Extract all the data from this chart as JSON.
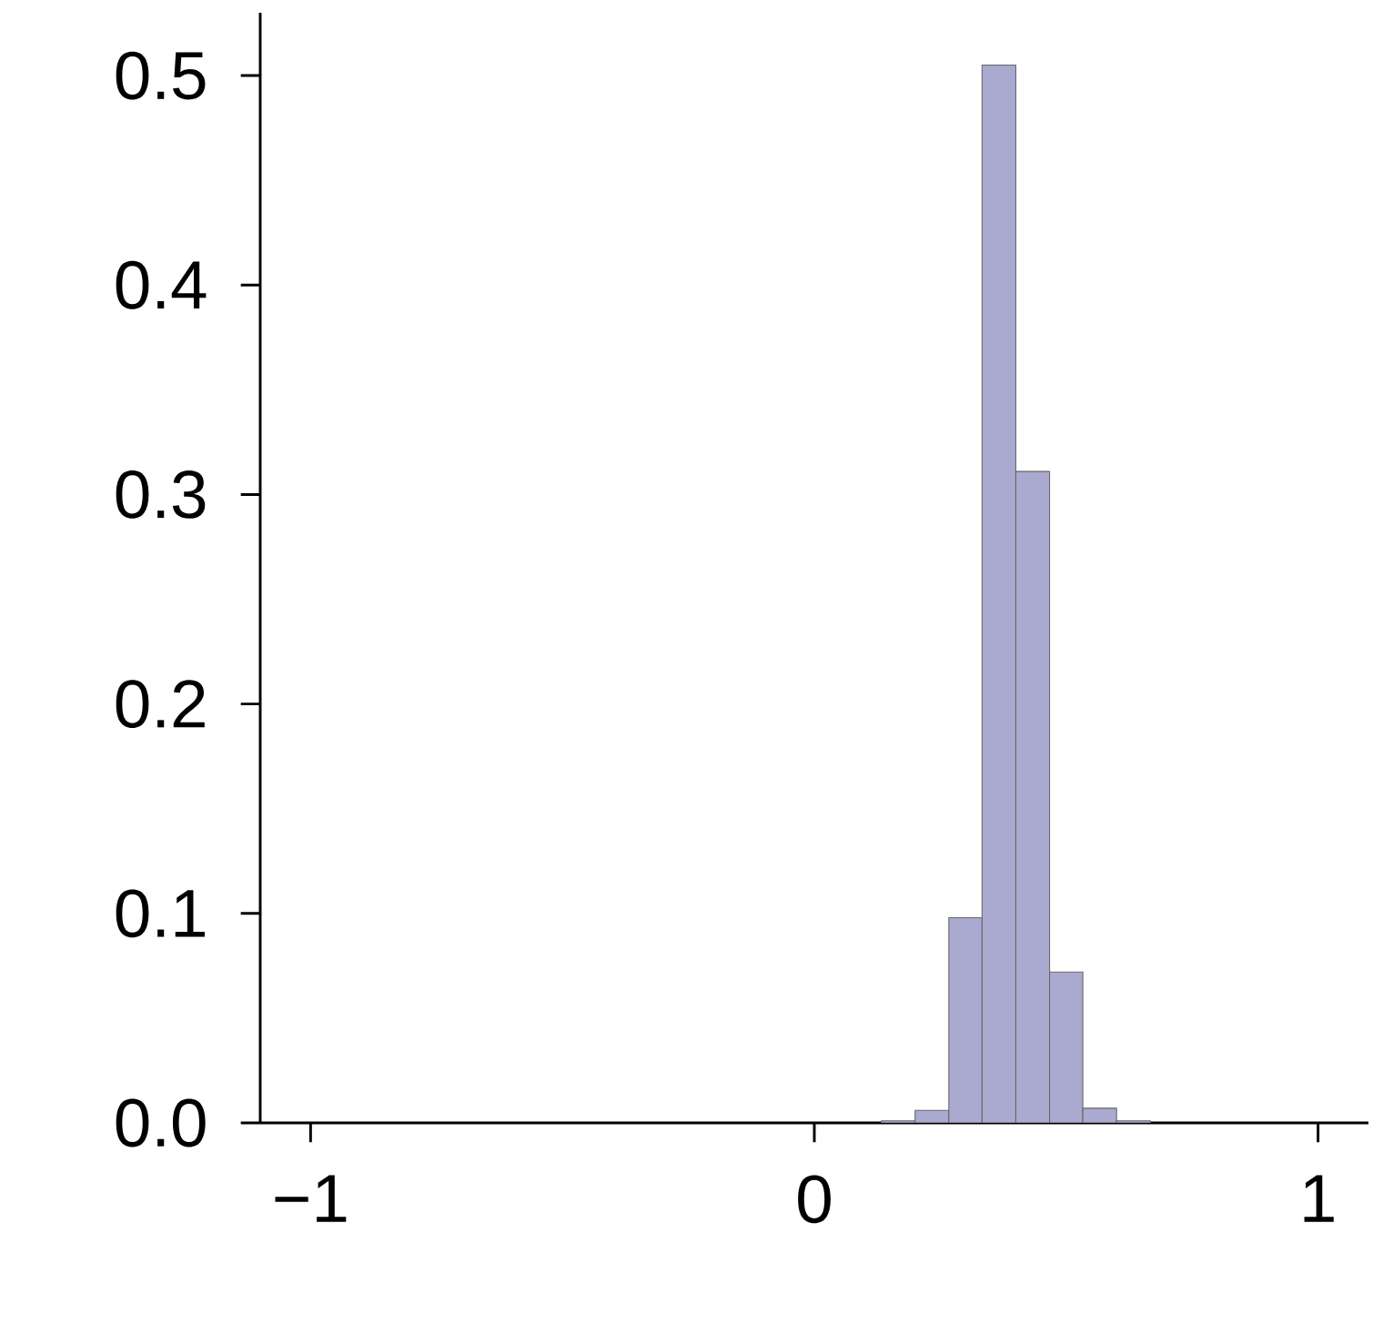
{
  "chart_data": {
    "type": "histogram",
    "bins": [
      0.133,
      0.2,
      0.267,
      0.333,
      0.4,
      0.467,
      0.533,
      0.6,
      0.667
    ],
    "values": [
      0.001,
      0.006,
      0.098,
      0.505,
      0.311,
      0.072,
      0.007,
      0.001
    ],
    "color": "#aaa9d0",
    "xlim": [
      -1.1,
      1.1
    ],
    "ylim": [
      0,
      0.53
    ],
    "xticks": [
      {
        "value": -1,
        "label": "−1"
      },
      0,
      1
    ],
    "yticks": [
      {
        "value": 0,
        "label": "0.0"
      },
      {
        "value": 0.1,
        "label": "0.1"
      },
      {
        "value": 0.2,
        "label": "0.2"
      },
      {
        "value": 0.3,
        "label": "0.3"
      },
      {
        "value": 0.4,
        "label": "0.4"
      },
      {
        "value": 0.5,
        "label": "0.5"
      }
    ],
    "line_style": "solid"
  }
}
